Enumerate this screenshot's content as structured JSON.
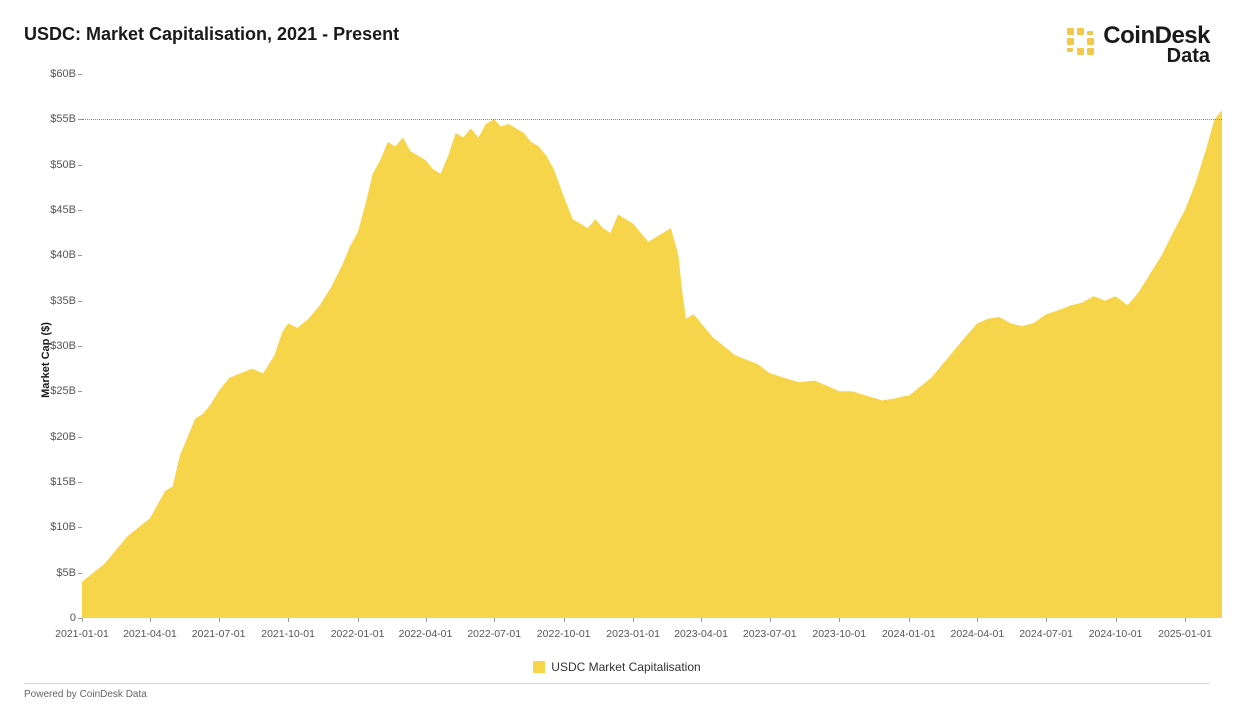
{
  "title": "USDC: Market Capitalisation, 2021 - Present",
  "brand": {
    "main": "CoinDesk",
    "sub": "Data",
    "icon_color": "#f2c94c"
  },
  "footer": "Powered by CoinDesk Data",
  "legend": {
    "label": "USDC Market Capitalisation",
    "swatch_color": "#f7d54a"
  },
  "chart": {
    "type": "area",
    "series_color": "#f7d54a",
    "background_color": "#ffffff",
    "reference_line": {
      "y": 55,
      "color": "#888888",
      "style": "dotted"
    },
    "y_axis": {
      "title": "Market Cap ($)",
      "min": 0,
      "max": 60,
      "tick_step": 5,
      "tick_prefix": "$",
      "tick_suffix": "B",
      "zero_label": "0",
      "label_fontsize": 11,
      "label_color": "#555555"
    },
    "x_axis": {
      "min": 0,
      "max": 1510,
      "ticks": [
        {
          "pos": 0,
          "label": "2021-01-01"
        },
        {
          "pos": 90,
          "label": "2021-04-01"
        },
        {
          "pos": 181,
          "label": "2021-07-01"
        },
        {
          "pos": 273,
          "label": "2021-10-01"
        },
        {
          "pos": 365,
          "label": "2022-01-01"
        },
        {
          "pos": 455,
          "label": "2022-04-01"
        },
        {
          "pos": 546,
          "label": "2022-07-01"
        },
        {
          "pos": 638,
          "label": "2022-10-01"
        },
        {
          "pos": 730,
          "label": "2023-01-01"
        },
        {
          "pos": 820,
          "label": "2023-04-01"
        },
        {
          "pos": 911,
          "label": "2023-07-01"
        },
        {
          "pos": 1003,
          "label": "2023-10-01"
        },
        {
          "pos": 1095,
          "label": "2024-01-01"
        },
        {
          "pos": 1186,
          "label": "2024-04-01"
        },
        {
          "pos": 1277,
          "label": "2024-07-01"
        },
        {
          "pos": 1369,
          "label": "2024-10-01"
        },
        {
          "pos": 1461,
          "label": "2025-01-01"
        }
      ],
      "label_fontsize": 10.5,
      "label_color": "#555555"
    },
    "series": {
      "name": "USDC Market Capitalisation",
      "points": [
        {
          "x": 0,
          "y": 4.0
        },
        {
          "x": 15,
          "y": 5.0
        },
        {
          "x": 30,
          "y": 6.0
        },
        {
          "x": 45,
          "y": 7.5
        },
        {
          "x": 60,
          "y": 9.0
        },
        {
          "x": 75,
          "y": 10.0
        },
        {
          "x": 90,
          "y": 11.0
        },
        {
          "x": 100,
          "y": 12.5
        },
        {
          "x": 110,
          "y": 14.0
        },
        {
          "x": 120,
          "y": 14.5
        },
        {
          "x": 130,
          "y": 18.0
        },
        {
          "x": 140,
          "y": 20.0
        },
        {
          "x": 150,
          "y": 22.0
        },
        {
          "x": 160,
          "y": 22.5
        },
        {
          "x": 170,
          "y": 23.5
        },
        {
          "x": 181,
          "y": 25.0
        },
        {
          "x": 195,
          "y": 26.5
        },
        {
          "x": 210,
          "y": 27.0
        },
        {
          "x": 225,
          "y": 27.5
        },
        {
          "x": 240,
          "y": 27.0
        },
        {
          "x": 255,
          "y": 29.0
        },
        {
          "x": 265,
          "y": 31.5
        },
        {
          "x": 273,
          "y": 32.5
        },
        {
          "x": 285,
          "y": 32.0
        },
        {
          "x": 300,
          "y": 33.0
        },
        {
          "x": 315,
          "y": 34.5
        },
        {
          "x": 330,
          "y": 36.5
        },
        {
          "x": 345,
          "y": 39.0
        },
        {
          "x": 355,
          "y": 41.0
        },
        {
          "x": 365,
          "y": 42.5
        },
        {
          "x": 375,
          "y": 45.5
        },
        {
          "x": 385,
          "y": 49.0
        },
        {
          "x": 395,
          "y": 50.5
        },
        {
          "x": 405,
          "y": 52.5
        },
        {
          "x": 415,
          "y": 52.0
        },
        {
          "x": 425,
          "y": 53.0
        },
        {
          "x": 435,
          "y": 51.5
        },
        {
          "x": 445,
          "y": 51.0
        },
        {
          "x": 455,
          "y": 50.5
        },
        {
          "x": 465,
          "y": 49.5
        },
        {
          "x": 475,
          "y": 49.0
        },
        {
          "x": 485,
          "y": 51.0
        },
        {
          "x": 495,
          "y": 53.5
        },
        {
          "x": 505,
          "y": 53.0
        },
        {
          "x": 515,
          "y": 54.0
        },
        {
          "x": 525,
          "y": 53.0
        },
        {
          "x": 535,
          "y": 54.5
        },
        {
          "x": 546,
          "y": 55.0
        },
        {
          "x": 555,
          "y": 54.2
        },
        {
          "x": 565,
          "y": 54.5
        },
        {
          "x": 575,
          "y": 54.0
        },
        {
          "x": 585,
          "y": 53.5
        },
        {
          "x": 595,
          "y": 52.5
        },
        {
          "x": 605,
          "y": 52.0
        },
        {
          "x": 615,
          "y": 51.0
        },
        {
          "x": 625,
          "y": 49.5
        },
        {
          "x": 638,
          "y": 46.5
        },
        {
          "x": 650,
          "y": 44.0
        },
        {
          "x": 660,
          "y": 43.5
        },
        {
          "x": 670,
          "y": 43.0
        },
        {
          "x": 680,
          "y": 44.0
        },
        {
          "x": 690,
          "y": 43.0
        },
        {
          "x": 700,
          "y": 42.5
        },
        {
          "x": 710,
          "y": 44.5
        },
        {
          "x": 720,
          "y": 44.0
        },
        {
          "x": 730,
          "y": 43.5
        },
        {
          "x": 740,
          "y": 42.5
        },
        {
          "x": 750,
          "y": 41.5
        },
        {
          "x": 760,
          "y": 42.0
        },
        {
          "x": 770,
          "y": 42.5
        },
        {
          "x": 780,
          "y": 43.0
        },
        {
          "x": 790,
          "y": 40.0
        },
        {
          "x": 795,
          "y": 36.0
        },
        {
          "x": 800,
          "y": 33.0
        },
        {
          "x": 810,
          "y": 33.5
        },
        {
          "x": 820,
          "y": 32.5
        },
        {
          "x": 835,
          "y": 31.0
        },
        {
          "x": 850,
          "y": 30.0
        },
        {
          "x": 865,
          "y": 29.0
        },
        {
          "x": 880,
          "y": 28.5
        },
        {
          "x": 895,
          "y": 28.0
        },
        {
          "x": 911,
          "y": 27.0
        },
        {
          "x": 930,
          "y": 26.5
        },
        {
          "x": 950,
          "y": 26.0
        },
        {
          "x": 970,
          "y": 26.2
        },
        {
          "x": 990,
          "y": 25.5
        },
        {
          "x": 1003,
          "y": 25.0
        },
        {
          "x": 1020,
          "y": 25.0
        },
        {
          "x": 1040,
          "y": 24.5
        },
        {
          "x": 1060,
          "y": 24.0
        },
        {
          "x": 1075,
          "y": 24.2
        },
        {
          "x": 1090,
          "y": 24.5
        },
        {
          "x": 1095,
          "y": 24.5
        },
        {
          "x": 1110,
          "y": 25.5
        },
        {
          "x": 1125,
          "y": 26.5
        },
        {
          "x": 1140,
          "y": 28.0
        },
        {
          "x": 1155,
          "y": 29.5
        },
        {
          "x": 1170,
          "y": 31.0
        },
        {
          "x": 1186,
          "y": 32.5
        },
        {
          "x": 1200,
          "y": 33.0
        },
        {
          "x": 1215,
          "y": 33.2
        },
        {
          "x": 1230,
          "y": 32.5
        },
        {
          "x": 1245,
          "y": 32.2
        },
        {
          "x": 1260,
          "y": 32.5
        },
        {
          "x": 1277,
          "y": 33.5
        },
        {
          "x": 1295,
          "y": 34.0
        },
        {
          "x": 1310,
          "y": 34.5
        },
        {
          "x": 1325,
          "y": 34.8
        },
        {
          "x": 1340,
          "y": 35.5
        },
        {
          "x": 1355,
          "y": 35.0
        },
        {
          "x": 1369,
          "y": 35.5
        },
        {
          "x": 1385,
          "y": 34.5
        },
        {
          "x": 1400,
          "y": 36.0
        },
        {
          "x": 1415,
          "y": 38.0
        },
        {
          "x": 1430,
          "y": 40.0
        },
        {
          "x": 1445,
          "y": 42.5
        },
        {
          "x": 1461,
          "y": 45.0
        },
        {
          "x": 1475,
          "y": 48.0
        },
        {
          "x": 1490,
          "y": 52.0
        },
        {
          "x": 1500,
          "y": 55.0
        },
        {
          "x": 1510,
          "y": 56.0
        }
      ]
    }
  }
}
